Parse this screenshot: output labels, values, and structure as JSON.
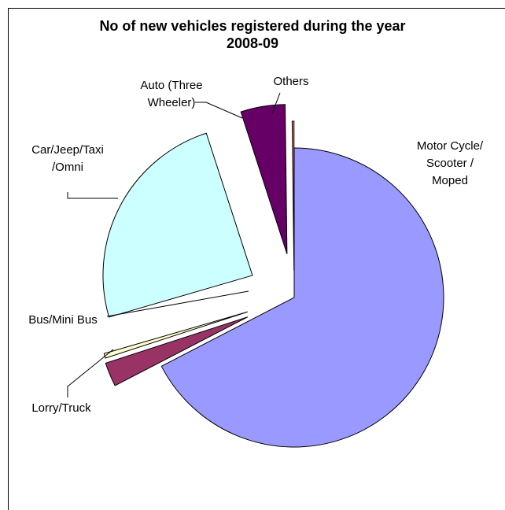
{
  "chart_data": {
    "type": "pie",
    "title_lines": [
      "No of new vehicles registered during the year",
      "2008-09"
    ],
    "slices": [
      {
        "name": "Motor Cycle/ Scooter / Moped",
        "value": 67.4,
        "color": "#9999ff",
        "label_lines": [
          "Motor Cycle/",
          "Scooter /",
          "Moped"
        ]
      },
      {
        "name": "Lorry/Truck",
        "value": 2.6,
        "color": "#993366",
        "label_lines": [
          "Lorry/Truck"
        ]
      },
      {
        "name": "Bus/Mini Bus",
        "value": 0.5,
        "color": "#ffffcc",
        "label_lines": [
          "Bus/Mini Bus"
        ]
      },
      {
        "name": "Car/Jeep/Taxi /Omni",
        "value": 24.5,
        "color": "#ccffff",
        "label_lines": [
          "Car/Jeep/Taxi",
          "/Omni"
        ]
      },
      {
        "name": "Auto (Three Wheeler)",
        "value": 4.8,
        "color": "#660066",
        "label_lines": [
          "Auto (Three",
          "Wheeler)"
        ]
      },
      {
        "name": "Others",
        "value": 0.2,
        "color": "#ff8080",
        "label_lines": [
          "Others"
        ]
      }
    ],
    "legend": "none"
  }
}
